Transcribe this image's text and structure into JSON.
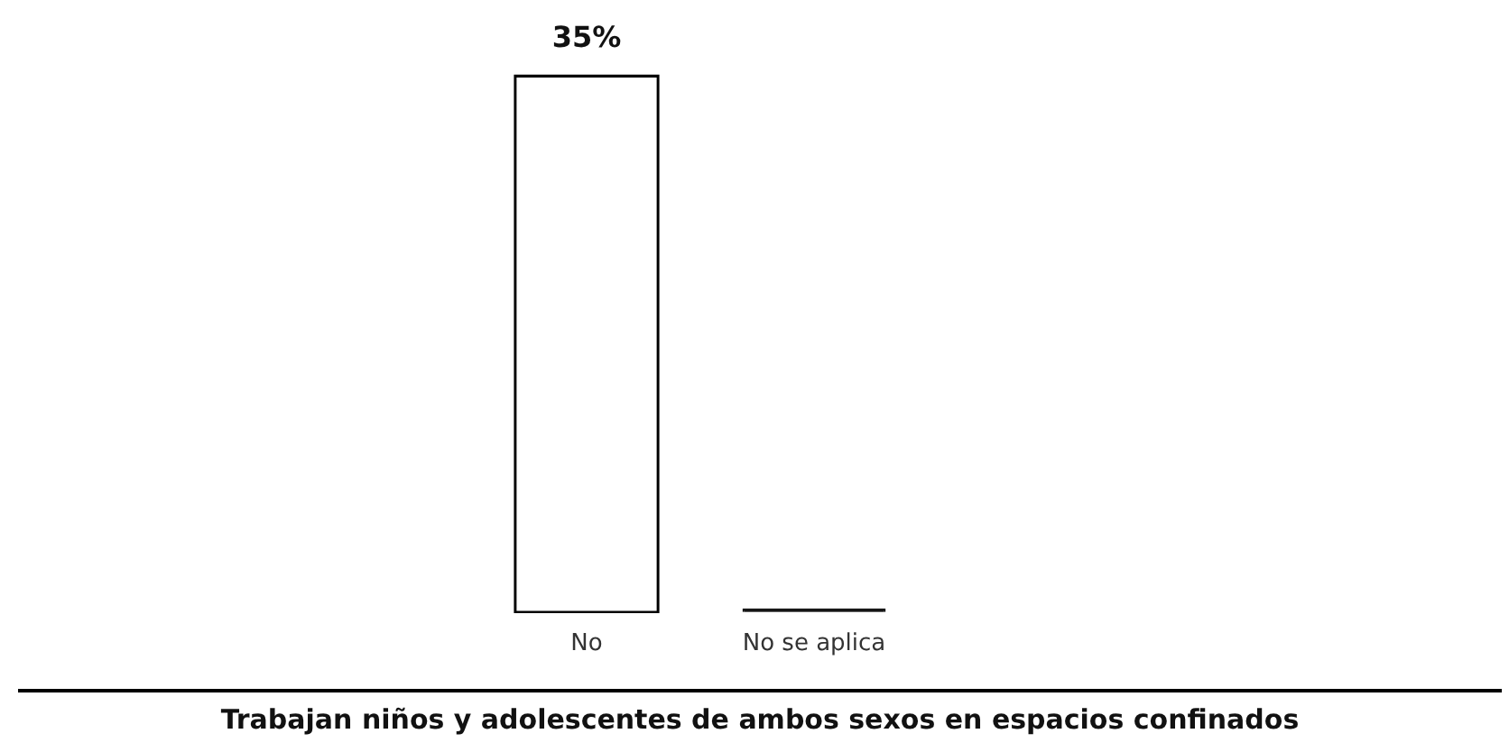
{
  "chart_data": {
    "type": "bar",
    "xlabel": "Trabajan niños y adolescentes de ambos sexos en espacios confinados",
    "categories": [
      "No",
      "No se aplica"
    ],
    "values": [
      35,
      0
    ],
    "colors": [
      "#ffffff",
      "#000000"
    ],
    "value_labels": [
      "35%",
      null
    ],
    "ylim": [
      0,
      35
    ],
    "grid": false,
    "legend": false
  }
}
